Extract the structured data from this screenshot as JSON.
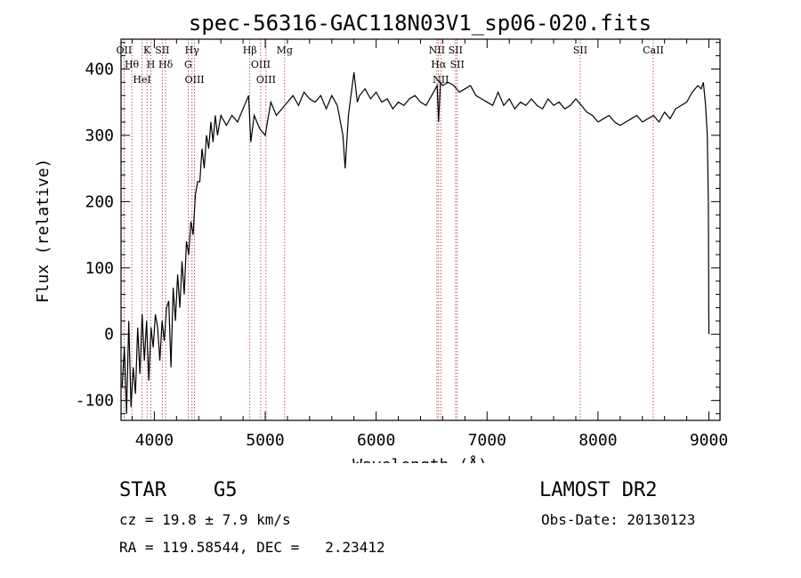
{
  "chart_data": {
    "type": "line",
    "title": "spec-56316-GAC118N03V1_sp06-020.fits",
    "xlabel": "Wavelength (Å)",
    "ylabel": "Flux (relative)",
    "xlim": [
      3700,
      9100
    ],
    "ylim": [
      -130,
      445
    ],
    "xticks": [
      4000,
      5000,
      6000,
      7000,
      8000,
      9000
    ],
    "yticks": [
      -100,
      0,
      100,
      200,
      300,
      400
    ],
    "grid": false,
    "series": [
      {
        "x": [
          3710,
          3730,
          3750,
          3770,
          3790,
          3810,
          3830,
          3850,
          3870,
          3890,
          3910,
          3930,
          3950,
          3970,
          3990,
          4010,
          4030,
          4050,
          4070,
          4090,
          4110,
          4130,
          4150,
          4170,
          4190,
          4210,
          4230,
          4250,
          4270,
          4290,
          4310,
          4330,
          4350,
          4370,
          4390,
          4410,
          4430,
          4450,
          4470,
          4490,
          4510,
          4530,
          4550,
          4570,
          4600,
          4650,
          4700,
          4750,
          4800,
          4850,
          4870,
          4900,
          4950,
          5000,
          5050,
          5100,
          5150,
          5200,
          5250,
          5300,
          5350,
          5400,
          5450,
          5500,
          5550,
          5600,
          5650,
          5700,
          5720,
          5750,
          5800,
          5830,
          5850,
          5900,
          5950,
          6000,
          6050,
          6100,
          6150,
          6200,
          6250,
          6300,
          6350,
          6400,
          6450,
          6500,
          6550,
          6563,
          6580,
          6600,
          6650,
          6700,
          6750,
          6800,
          6850,
          6900,
          6950,
          7000,
          7050,
          7100,
          7150,
          7200,
          7250,
          7300,
          7350,
          7400,
          7450,
          7500,
          7550,
          7600,
          7650,
          7700,
          7750,
          7800,
          7850,
          7900,
          7950,
          8000,
          8050,
          8100,
          8150,
          8200,
          8250,
          8300,
          8350,
          8400,
          8450,
          8500,
          8550,
          8600,
          8650,
          8700,
          8750,
          8800,
          8850,
          8900,
          8930,
          8950,
          8970,
          8985,
          8995,
          9000
        ],
        "y": [
          -80,
          -20,
          -120,
          20,
          -110,
          -50,
          -90,
          10,
          -60,
          30,
          -40,
          20,
          -70,
          10,
          -20,
          30,
          10,
          -40,
          20,
          -10,
          40,
          50,
          -50,
          70,
          20,
          90,
          40,
          110,
          60,
          140,
          120,
          170,
          150,
          210,
          230,
          230,
          280,
          250,
          300,
          280,
          320,
          290,
          330,
          300,
          330,
          315,
          330,
          320,
          340,
          360,
          290,
          330,
          310,
          300,
          350,
          330,
          340,
          350,
          360,
          345,
          365,
          355,
          350,
          360,
          340,
          360,
          345,
          300,
          250,
          330,
          395,
          350,
          360,
          370,
          355,
          365,
          350,
          355,
          340,
          350,
          345,
          355,
          360,
          350,
          345,
          360,
          375,
          320,
          380,
          375,
          380,
          375,
          365,
          370,
          375,
          360,
          355,
          350,
          345,
          365,
          345,
          355,
          340,
          350,
          345,
          355,
          345,
          340,
          355,
          345,
          350,
          340,
          345,
          355,
          345,
          335,
          330,
          320,
          325,
          330,
          320,
          315,
          320,
          325,
          330,
          320,
          325,
          330,
          320,
          335,
          325,
          340,
          345,
          350,
          365,
          375,
          370,
          380,
          345,
          300,
          200,
          0
        ]
      }
    ],
    "line_markers": [
      {
        "label": "OII",
        "wavelength": 3727
      },
      {
        "label": "Hθ",
        "wavelength": 3797
      },
      {
        "label": "HeI",
        "wavelength": 3889
      },
      {
        "label": "K",
        "wavelength": 3934
      },
      {
        "label": "H",
        "wavelength": 3969
      },
      {
        "label": "SII",
        "wavelength": 4072
      },
      {
        "label": "Hδ",
        "wavelength": 4102
      },
      {
        "label": "Hγ",
        "wavelength": 4340
      },
      {
        "label": "G",
        "wavelength": 4305
      },
      {
        "label": "OIII",
        "wavelength": 4363
      },
      {
        "label": "Hβ",
        "wavelength": 4861
      },
      {
        "label": "OIII",
        "wavelength": 4959
      },
      {
        "label": "OIII",
        "wavelength": 5007
      },
      {
        "label": "Mg",
        "wavelength": 5175
      },
      {
        "label": "NII",
        "wavelength": 6548
      },
      {
        "label": "Hα",
        "wavelength": 6563
      },
      {
        "label": "NII",
        "wavelength": 6583
      },
      {
        "label": "SII",
        "wavelength": 6716
      },
      {
        "label": "SII",
        "wavelength": 6731
      },
      {
        "label": "SII",
        "wavelength": 7840
      },
      {
        "label": "CaII",
        "wavelength": 8498
      }
    ]
  },
  "info": {
    "class_line": "STAR    G5",
    "survey": "LAMOST DR2",
    "cz_line": "cz = 19.8 ± 7.9 km/s",
    "obs_date": "Obs-Date: 20130123",
    "radec_line": "RA = 119.58544, DEC =   2.23412"
  }
}
